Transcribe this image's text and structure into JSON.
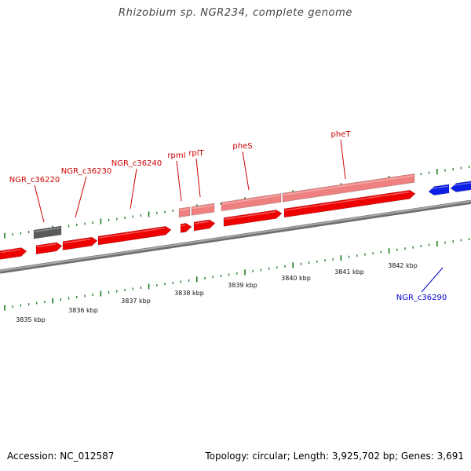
{
  "title": "Rhizobium sp. NGR234, complete genome",
  "footer": {
    "accession": "Accession: NC_012587",
    "topology": "Topology: circular; Length: 3,925,702 bp; Genes: 3,691"
  },
  "colors": {
    "forward_gene": "#ee0000",
    "rrna_gene": "#ee8080",
    "pseudo_gene": "#5a5a5a",
    "reverse_gene": "#0a1ee6",
    "backbone": "#8a8a8a",
    "tick": "#1a7a1a",
    "forward_label": "#cc0000",
    "reverse_label": "#0000cc"
  },
  "position_labels": [
    "3835 kbp",
    "3836 kbp",
    "3837 kbp",
    "3838 kbp",
    "3839 kbp",
    "3840 kbp",
    "3841 kbp",
    "3842 kbp"
  ],
  "gene_labels": [
    "NGR_c36220",
    "NGR_c36230",
    "NGR_c36240",
    "rpmI",
    "rplT",
    "pheS",
    "pheT",
    "NGR_c36290"
  ]
}
